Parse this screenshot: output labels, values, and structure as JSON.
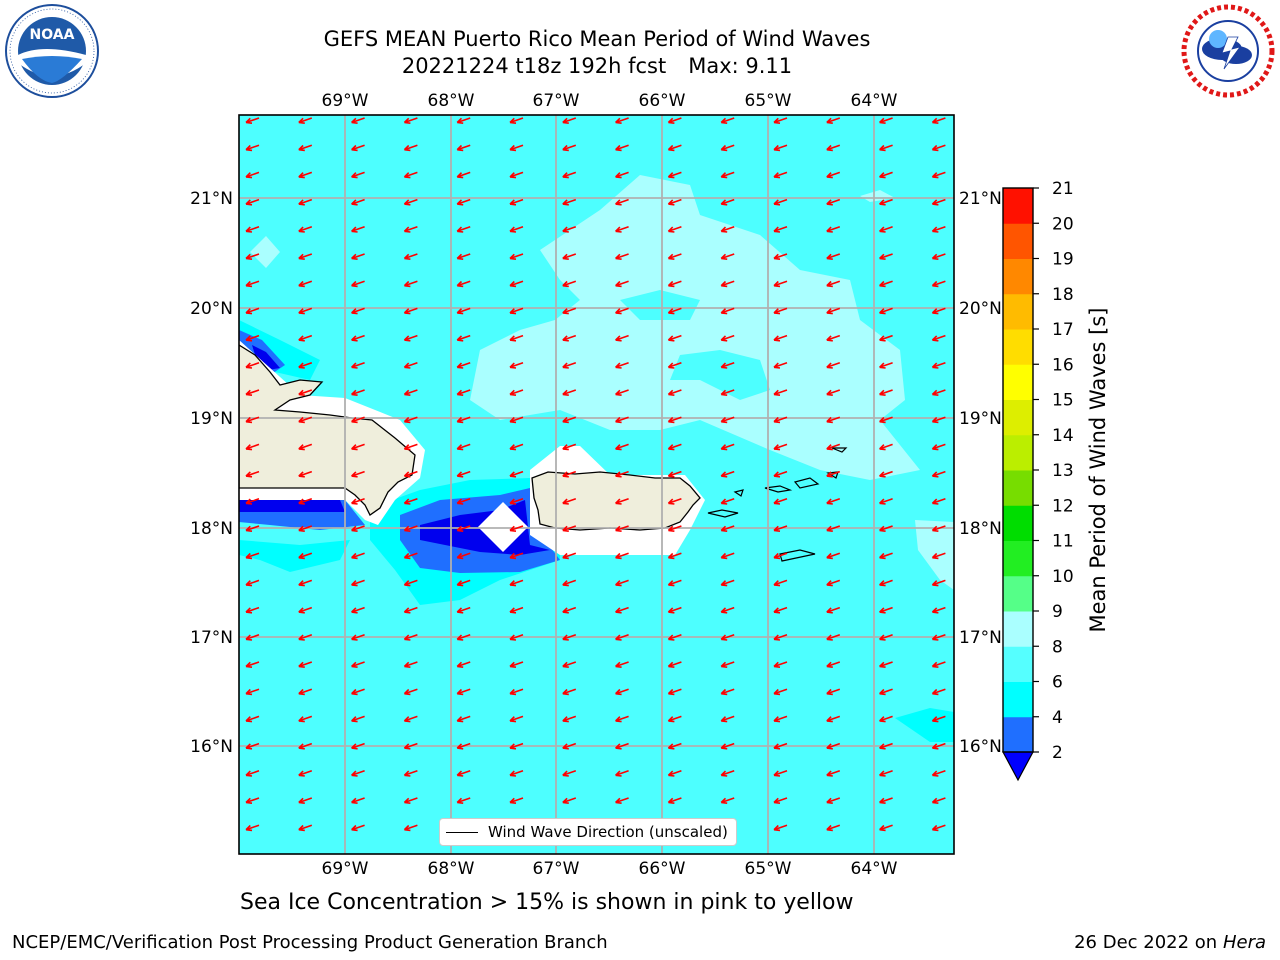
{
  "title": {
    "line1": "GEFS MEAN Puerto Rico Mean Period of Wind Waves",
    "run": "20221224 t18z 192h fcst",
    "max": "Max: 9.11"
  },
  "logos": {
    "left": "noaa-logo",
    "right": "nws-logo",
    "noaa_text": "NOAA"
  },
  "map": {
    "lon_labels": [
      "69°W",
      "68°W",
      "67°W",
      "66°W",
      "65°W",
      "64°W"
    ],
    "lat_labels": [
      "21°N",
      "20°N",
      "19°N",
      "18°N",
      "17°N",
      "16°N"
    ],
    "legend_label": "Wind Wave Direction (unscaled)",
    "arrow_color": "#ff0000",
    "water_color": "#4dffff"
  },
  "colorbar": {
    "title": "Mean Period of Wind Waves [s]",
    "ticks": [
      "2",
      "4",
      "6",
      "8",
      "9",
      "10",
      "11",
      "12",
      "13",
      "14",
      "15",
      "16",
      "17",
      "18",
      "19",
      "20",
      "21"
    ],
    "colors": [
      "#1f6fff",
      "#00ffff",
      "#55ffff",
      "#aaffff",
      "#55ff88",
      "#22ee22",
      "#00dd00",
      "#77dd00",
      "#bbee00",
      "#ddee00",
      "#ffff00",
      "#ffdd00",
      "#ffbb00",
      "#ff8800",
      "#ff5500",
      "#ff1100"
    ],
    "under_color": "#0000ff"
  },
  "note": "Sea Ice Concentration > 15% is shown in pink to yellow",
  "footer": {
    "left": "NCEP/EMC/Verification Post Processing Product Generation Branch",
    "right_prefix": "26 Dec 2022 on",
    "right_host": "Hera"
  }
}
